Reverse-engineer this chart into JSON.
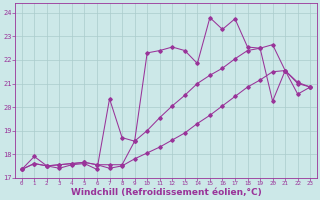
{
  "background_color": "#cce8e8",
  "grid_color": "#aacccc",
  "line_color": "#993399",
  "xlabel": "Windchill (Refroidissement éolien,°C)",
  "xlabel_fontsize": 6.5,
  "ylim": [
    17,
    24.4
  ],
  "xlim": [
    -0.5,
    23.5
  ],
  "yticks": [
    17,
    18,
    19,
    20,
    21,
    22,
    23,
    24
  ],
  "xticks": [
    0,
    1,
    2,
    3,
    4,
    5,
    6,
    7,
    8,
    9,
    10,
    11,
    12,
    13,
    14,
    15,
    16,
    17,
    18,
    19,
    20,
    21,
    22,
    23
  ],
  "line1_x": [
    0,
    1,
    2,
    3,
    4,
    5,
    6,
    7,
    8,
    9,
    10,
    11,
    12,
    13,
    14,
    15,
    16,
    17,
    18,
    19,
    20,
    21,
    22,
    23
  ],
  "line1_y": [
    17.35,
    17.9,
    17.5,
    17.4,
    17.55,
    17.6,
    17.35,
    20.35,
    18.7,
    18.55,
    22.3,
    22.4,
    22.55,
    22.4,
    21.85,
    23.8,
    23.3,
    23.75,
    22.55,
    22.5,
    20.25,
    21.55,
    21.0,
    20.85
  ],
  "line2_x": [
    0,
    1,
    2,
    3,
    4,
    5,
    6,
    7,
    8,
    9,
    10,
    11,
    12,
    13,
    14,
    15,
    16,
    17,
    18,
    19,
    20,
    21,
    22,
    23
  ],
  "line2_y": [
    17.35,
    17.6,
    17.5,
    17.55,
    17.6,
    17.65,
    17.55,
    17.55,
    17.55,
    18.55,
    19.0,
    19.55,
    20.05,
    20.5,
    21.0,
    21.35,
    21.65,
    22.05,
    22.4,
    22.5,
    22.65,
    21.55,
    21.05,
    20.85
  ],
  "line3_x": [
    0,
    1,
    2,
    3,
    4,
    5,
    6,
    7,
    8,
    9,
    10,
    11,
    12,
    13,
    14,
    15,
    16,
    17,
    18,
    19,
    20,
    21,
    22,
    23
  ],
  "line3_y": [
    17.35,
    17.6,
    17.5,
    17.55,
    17.6,
    17.65,
    17.55,
    17.4,
    17.5,
    17.8,
    18.05,
    18.3,
    18.6,
    18.9,
    19.3,
    19.65,
    20.05,
    20.45,
    20.85,
    21.15,
    21.5,
    21.55,
    20.55,
    20.85
  ]
}
